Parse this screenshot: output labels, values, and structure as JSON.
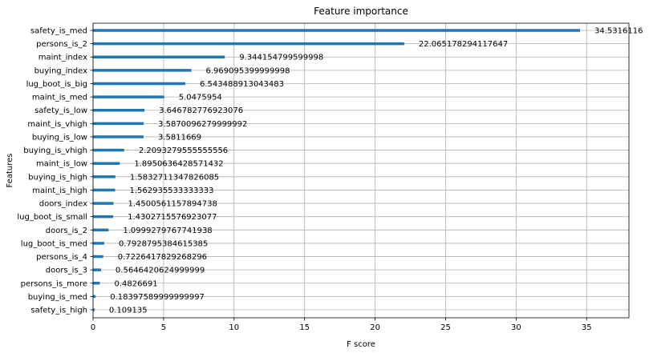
{
  "chart_data": {
    "type": "bar",
    "orientation": "horizontal",
    "title": "Feature importance",
    "xlabel": "F score",
    "ylabel": "Features",
    "xlim": [
      0,
      38
    ],
    "xticks": [
      0,
      5,
      10,
      15,
      20,
      25,
      30,
      35
    ],
    "grid": true,
    "bar_color": "#1f77b4",
    "categories": [
      "safety_is_med",
      "persons_is_2",
      "maint_index",
      "buying_index",
      "lug_boot_is_big",
      "maint_is_med",
      "safety_is_low",
      "maint_is_vhigh",
      "buying_is_low",
      "buying_is_vhigh",
      "maint_is_low",
      "buying_is_high",
      "maint_is_high",
      "doors_index",
      "lug_boot_is_small",
      "doors_is_2",
      "lug_boot_is_med",
      "persons_is_4",
      "doors_is_3",
      "persons_is_more",
      "buying_is_med",
      "safety_is_high"
    ],
    "values": [
      34.5316116,
      22.065178294117647,
      9.344154799599998,
      6.969095399999998,
      6.543488913043483,
      5.0475954,
      3.646782776923076,
      3.5870096279999992,
      3.5811669,
      2.2093279555555556,
      1.8950636428571432,
      1.5832711347826085,
      1.562935533333333,
      1.4500561157894738,
      1.4302715576923077,
      1.0999279767741938,
      0.7928795384615385,
      0.7226417829268296,
      0.5646420624999999,
      0.4826691,
      0.18397589999999997,
      0.109135
    ],
    "value_labels": [
      "34.5316116",
      "22.065178294117647",
      "9.344154799599998",
      "6.969095399999998",
      "6.543488913043483",
      "5.0475954",
      "3.646782776923076",
      "3.5870096279999992",
      "3.5811669",
      "2.2093279555555556",
      "1.8950636428571432",
      "1.5832711347826085",
      "1.562935533333333",
      "1.4500561157894738",
      "1.4302715576923077",
      "1.0999279767741938",
      "0.7928795384615385",
      "0.7226417829268296",
      "0.5646420624999999",
      "0.4826691",
      "0.18397589999999997",
      "0.109135"
    ]
  }
}
